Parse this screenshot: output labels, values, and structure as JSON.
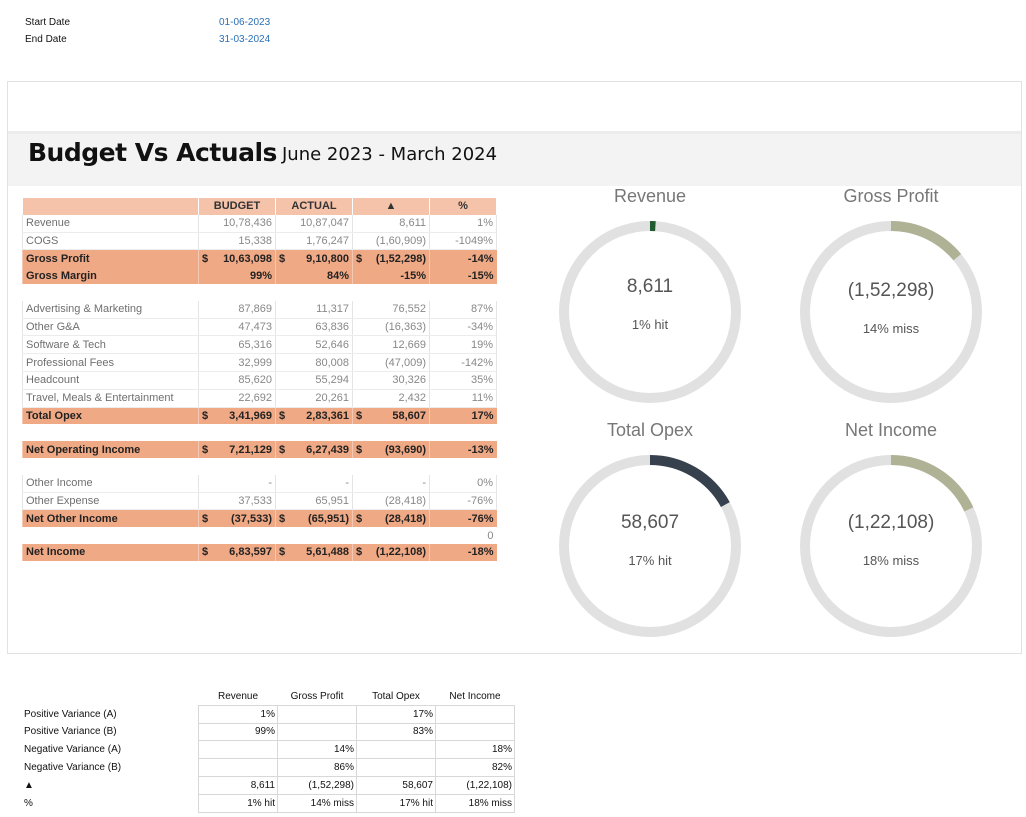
{
  "params": [
    {
      "label": "Start Date",
      "value": "01-06-2023"
    },
    {
      "label": "End Date",
      "value": "31-03-2024"
    }
  ],
  "header": {
    "title": "Budget Vs Actuals",
    "subtitle": "June 2023 - March 2024"
  },
  "table": {
    "columns": [
      "",
      "BUDGET",
      "ACTUAL",
      "▲",
      "%"
    ],
    "currency": "$",
    "rows": [
      {
        "label": "Revenue",
        "budget": "10,78,436",
        "actual": "10,87,047",
        "delta": "8,611",
        "pct": "1%",
        "style": "line"
      },
      {
        "label": "COGS",
        "budget": "15,338",
        "actual": "1,76,247",
        "delta": "(1,60,909)",
        "pct": "-1049%",
        "style": "line"
      },
      {
        "label": "Gross Profit",
        "budget": "10,63,098",
        "actual": "9,10,800",
        "delta": "(1,52,298)",
        "pct": "-14%",
        "style": "bold",
        "cur": true
      },
      {
        "label": "Gross Margin",
        "budget": "99%",
        "actual": "84%",
        "delta": "-15%",
        "pct": "-15%",
        "style": "bold"
      },
      {
        "label": "",
        "budget": "",
        "actual": "",
        "delta": "",
        "pct": "",
        "style": "blank"
      },
      {
        "label": "Advertising & Marketing",
        "budget": "87,869",
        "actual": "11,317",
        "delta": "76,552",
        "pct": "87%",
        "style": "line"
      },
      {
        "label": "Other G&A",
        "budget": "47,473",
        "actual": "63,836",
        "delta": "(16,363)",
        "pct": "-34%",
        "style": "line"
      },
      {
        "label": "Software & Tech",
        "budget": "65,316",
        "actual": "52,646",
        "delta": "12,669",
        "pct": "19%",
        "style": "line"
      },
      {
        "label": "Professional Fees",
        "budget": "32,999",
        "actual": "80,008",
        "delta": "(47,009)",
        "pct": "-142%",
        "style": "line"
      },
      {
        "label": "Headcount",
        "budget": "85,620",
        "actual": "55,294",
        "delta": "30,326",
        "pct": "35%",
        "style": "line"
      },
      {
        "label": "Travel, Meals & Entertainment",
        "budget": "22,692",
        "actual": "20,261",
        "delta": "2,432",
        "pct": "11%",
        "style": "line"
      },
      {
        "label": "Total Opex",
        "budget": "3,41,969",
        "actual": "2,83,361",
        "delta": "58,607",
        "pct": "17%",
        "style": "bold",
        "cur": true
      },
      {
        "label": "",
        "budget": "",
        "actual": "",
        "delta": "",
        "pct": "",
        "style": "blank"
      },
      {
        "label": "Net Operating Income",
        "budget": "7,21,129",
        "actual": "6,27,439",
        "delta": "(93,690)",
        "pct": "-13%",
        "style": "bold",
        "cur": true
      },
      {
        "label": "",
        "budget": "",
        "actual": "",
        "delta": "",
        "pct": "",
        "style": "blank"
      },
      {
        "label": "Other Income",
        "budget": "-",
        "actual": "-",
        "delta": "-",
        "pct": "0%",
        "style": "line"
      },
      {
        "label": "Other Expense",
        "budget": "37,533",
        "actual": "65,951",
        "delta": "(28,418)",
        "pct": "-76%",
        "style": "line"
      },
      {
        "label": "Net Other Income",
        "budget": "(37,533)",
        "actual": "(65,951)",
        "delta": "(28,418)",
        "pct": "-76%",
        "style": "bold",
        "cur": true
      },
      {
        "label": "",
        "budget": "",
        "actual": "",
        "delta": "",
        "pct": "0",
        "style": "blank"
      },
      {
        "label": "Net Income",
        "budget": "6,83,597",
        "actual": "5,61,488",
        "delta": "(1,22,108)",
        "pct": "-18%",
        "style": "bold",
        "cur": true
      }
    ]
  },
  "gauges": [
    {
      "title": "Revenue",
      "value": "8,611",
      "sub": "1% hit",
      "pct": 0.01,
      "color": "#1f5b2e"
    },
    {
      "title": "Gross Profit",
      "value": "(1,52,298)",
      "sub": "14% miss",
      "pct": 0.14,
      "color": "#b0b295"
    },
    {
      "title": "Total Opex",
      "value": "58,607",
      "sub": "17% hit",
      "pct": 0.17,
      "color": "#36414d"
    },
    {
      "title": "Net Income",
      "value": "(1,22,108)",
      "sub": "18% miss",
      "pct": 0.18,
      "color": "#b0b295"
    }
  ],
  "gauge_track_color": "#e1e1e1",
  "helper": {
    "headers": [
      "Revenue",
      "Gross Profit",
      "Total Opex",
      "Net Income"
    ],
    "rows": [
      {
        "label": "Positive Variance (A)",
        "cells": [
          "1%",
          "",
          "17%",
          ""
        ]
      },
      {
        "label": "Positive Variance (B)",
        "cells": [
          "99%",
          "",
          "83%",
          ""
        ]
      },
      {
        "label": "Negative Variance (A)",
        "cells": [
          "",
          "14%",
          "",
          "18%"
        ]
      },
      {
        "label": "Negative Variance (B)",
        "cells": [
          "",
          "86%",
          "",
          "82%"
        ]
      },
      {
        "label": "▲",
        "cells": [
          "8,611",
          "(1,52,298)",
          "58,607",
          "(1,22,108)"
        ]
      },
      {
        "label": "%",
        "cells": [
          "1% hit",
          "14% miss",
          "17% hit",
          "18% miss"
        ]
      }
    ]
  }
}
